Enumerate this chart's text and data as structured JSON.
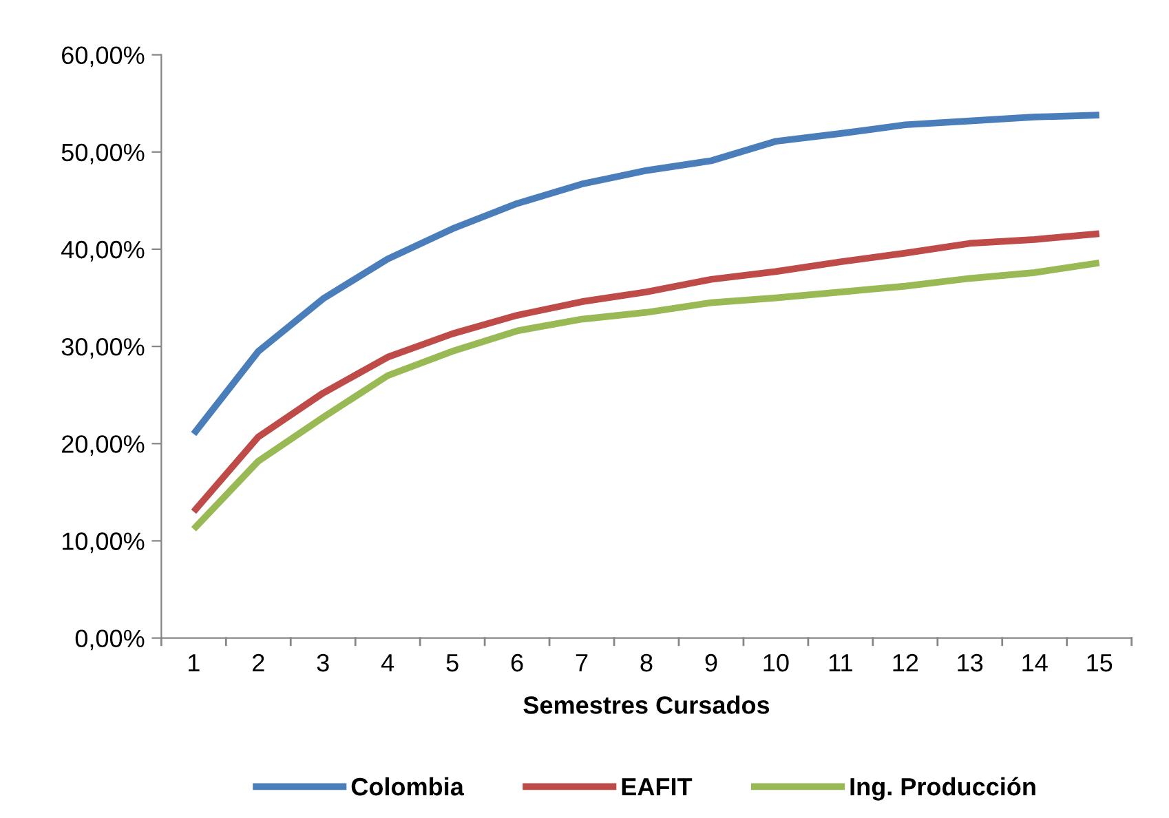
{
  "chart_data": {
    "type": "line",
    "xlabel": "Semestres Cursados",
    "categories": [
      "1",
      "2",
      "3",
      "4",
      "5",
      "6",
      "7",
      "8",
      "9",
      "10",
      "11",
      "12",
      "13",
      "14",
      "15"
    ],
    "series": [
      {
        "name": "Colombia",
        "color": "#4a7ebb",
        "values": [
          21.0,
          29.5,
          34.9,
          39.0,
          42.1,
          44.7,
          46.7,
          48.1,
          49.1,
          51.1,
          51.9,
          52.8,
          53.2,
          53.6,
          53.8
        ]
      },
      {
        "name": "EAFIT",
        "color": "#be4b48",
        "values": [
          13.0,
          20.7,
          25.2,
          28.9,
          31.3,
          33.2,
          34.6,
          35.6,
          36.9,
          37.7,
          38.7,
          39.6,
          40.6,
          41.0,
          41.6
        ]
      },
      {
        "name": "Ing. Producción",
        "color": "#98b954",
        "values": [
          11.2,
          18.2,
          22.7,
          27.0,
          29.5,
          31.6,
          32.8,
          33.5,
          34.5,
          35.0,
          35.6,
          36.2,
          37.0,
          37.6,
          38.6
        ]
      }
    ],
    "ylim": [
      0,
      60
    ],
    "yticks": [
      {
        "value": 0,
        "label": "0,00%"
      },
      {
        "value": 10,
        "label": "10,00%"
      },
      {
        "value": 20,
        "label": "20,00%"
      },
      {
        "value": 30,
        "label": "30,00%"
      },
      {
        "value": 40,
        "label": "40,00%"
      },
      {
        "value": 50,
        "label": "50,00%"
      },
      {
        "value": 60,
        "label": "60,00%"
      }
    ],
    "grid": false,
    "legend": "bottom",
    "marker": "none",
    "line_style": "solid"
  }
}
